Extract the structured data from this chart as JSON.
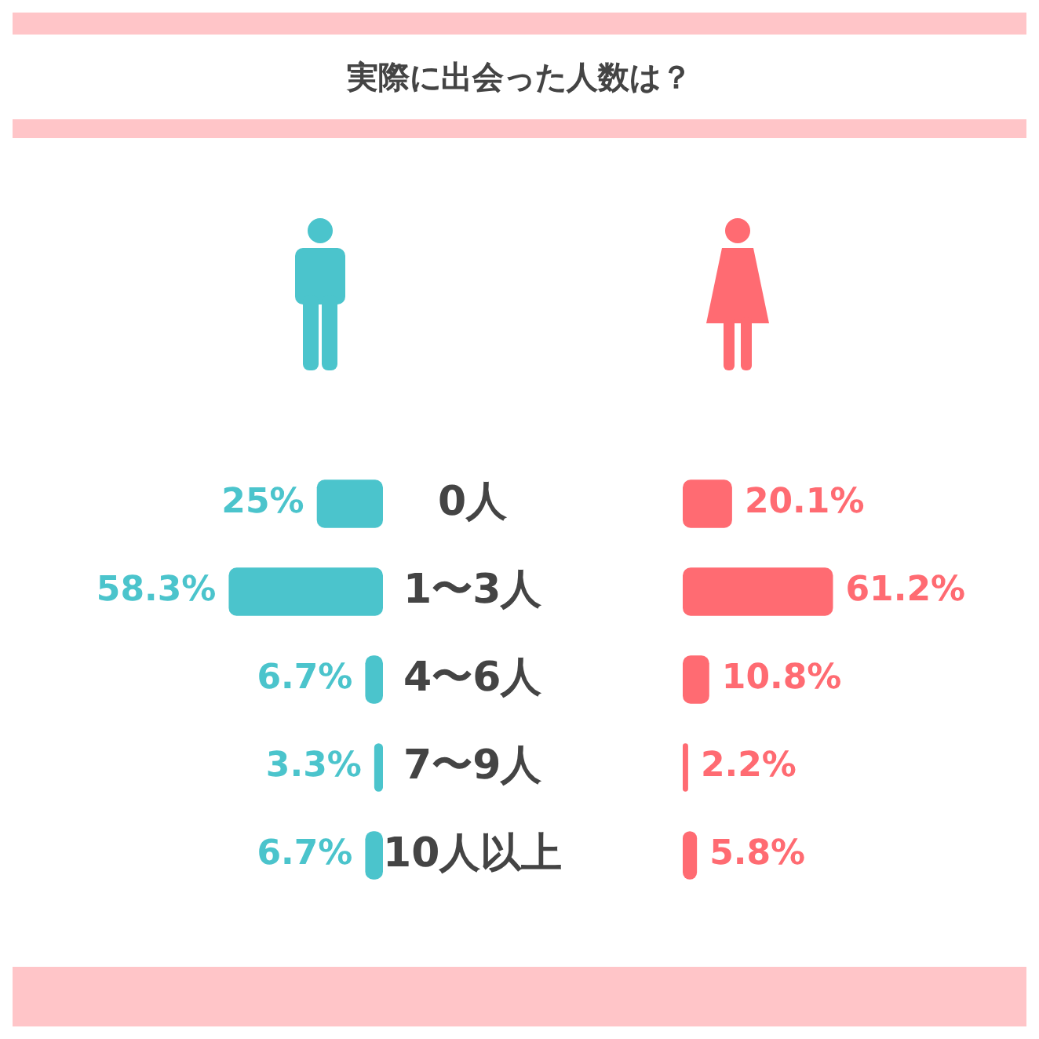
{
  "chart_data": [
    {
      "type": "bar",
      "title": "実際に出会った人数は？",
      "orientation": "horizontal",
      "categories": [
        "0人",
        "1〜3人",
        "4〜6人",
        "7〜9人",
        "10人以上"
      ],
      "series": [
        {
          "color": "#4bc4cc",
          "values": [
            25,
            58.3,
            6.7,
            3.3,
            6.7
          ],
          "value_labels": [
            "25%",
            "58.3%",
            "6.7%",
            "3.3%",
            "6.7%"
          ]
        }
      ],
      "xlim": [
        140,
        0
      ],
      "tick_labels": "y",
      "grid": false,
      "legend": false
    },
    {
      "type": "bar",
      "orientation": "horizontal",
      "categories": [
        null,
        null,
        null,
        null,
        null
      ],
      "series": [
        {
          "color": "#ff6b72",
          "values": [
            20.1,
            61.2,
            10.8,
            2.2,
            5.8
          ],
          "value_labels": [
            "20.1%",
            "61.2%",
            "10.8%",
            "2.2%",
            "5.8%"
          ]
        }
      ],
      "xlim": [
        0,
        140
      ],
      "tick_labels": false,
      "grid": false,
      "legend": false
    }
  ]
}
